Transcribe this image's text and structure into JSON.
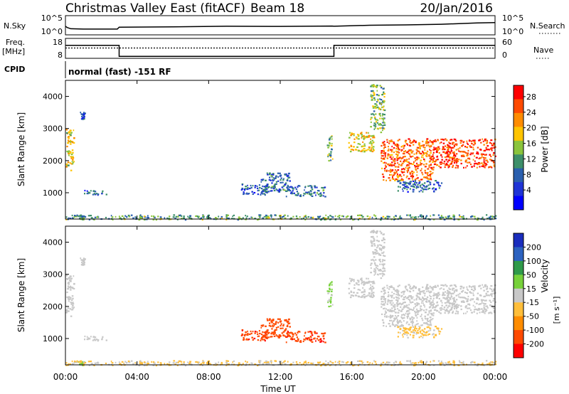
{
  "header": {
    "station": "Christmas Valley East (fitACF)",
    "beam": "Beam 18",
    "date": "20/Jan/2016"
  },
  "panels": {
    "nsky": {
      "left_label": "N.Sky",
      "left_ticks": [
        "10^5",
        "10^0"
      ],
      "right_label": "N.Search",
      "right_ticks": [
        "10^5",
        "10^0"
      ],
      "color": "#000000",
      "nsky_points": [
        [
          0.0,
          0.55
        ],
        [
          0.1,
          0.62
        ],
        [
          0.3,
          0.68
        ],
        [
          1.0,
          0.7
        ],
        [
          2.9,
          0.7
        ],
        [
          3.0,
          0.6
        ],
        [
          6.0,
          0.58
        ],
        [
          9.0,
          0.55
        ],
        [
          12.0,
          0.56
        ],
        [
          14.9,
          0.54
        ],
        [
          15.0,
          0.55
        ],
        [
          17.0,
          0.5
        ],
        [
          19.0,
          0.48
        ],
        [
          21.0,
          0.45
        ],
        [
          23.0,
          0.38
        ],
        [
          24.0,
          0.36
        ]
      ]
    },
    "freq": {
      "left_label_top": "Freq.",
      "left_label_unit": "[MHz]",
      "left_ticks": [
        "18",
        "8"
      ],
      "right_label": "Nave",
      "right_ticks": [
        "60",
        "0"
      ],
      "freq_steps": [
        [
          0.0,
          14.5
        ],
        [
          3.0,
          14.5
        ],
        [
          3.0,
          9.0
        ],
        [
          15.0,
          9.0
        ],
        [
          15.0,
          14.5
        ],
        [
          24.0,
          14.5
        ]
      ],
      "nave_steps": [
        [
          0.0,
          31
        ],
        [
          24.0,
          31
        ]
      ]
    },
    "cpid": {
      "label": "CPID",
      "mode": "normal (fast) -151 RF"
    },
    "power": {
      "ylabel": "Slant Range [km]",
      "colorbar_label": "Power [dB]",
      "colorbar_ticks": [
        "28",
        "24",
        "20",
        "16",
        "12",
        "8",
        "4"
      ],
      "colorbar_colors": [
        "#ff0000",
        "#ff4a00",
        "#ff8c00",
        "#ffc400",
        "#8ac43c",
        "#3d8f6a",
        "#2a5fae",
        "#1f34d6",
        "#0000ff"
      ]
    },
    "velocity": {
      "ylabel": "Velocity",
      "ylabel_unit": "[m s⁻¹]",
      "slant_label": "Slant Range [km]",
      "colorbar_ticks": [
        "200",
        "100",
        "50",
        "15",
        "-15",
        "-50",
        "-100",
        "-200"
      ],
      "colorbar_colors": [
        "#1a2dbd",
        "#2c62c0",
        "#2f9a4a",
        "#77d13a",
        "#c8c8c8",
        "#ffbe3a",
        "#ff8c00",
        "#ff4a00",
        "#ff0000"
      ]
    }
  },
  "axes": {
    "xlabel": "Time UT",
    "x_ticks": [
      "00:00",
      "04:00",
      "08:00",
      "12:00",
      "16:00",
      "20:00",
      "00:00"
    ],
    "y_ticks": [
      "4000",
      "3000",
      "2000",
      "1000"
    ]
  },
  "chart_data": {
    "type": "heatmap",
    "title": "Christmas Valley East (fitACF)",
    "subtitle": "Beam 18",
    "xlabel": "Time UT",
    "ylabel": "Slant Range [km]",
    "xlim_hours": [
      0,
      24
    ],
    "ylim_km": [
      180,
      4500
    ],
    "power_range_db": [
      0,
      30
    ],
    "velocity_range_ms": [
      -250,
      250
    ],
    "scatter_regions": [
      {
        "t0": 0.0,
        "t1": 0.45,
        "r0": 1700,
        "r1": 3000,
        "power": 18,
        "vel": 0
      },
      {
        "t0": 0.8,
        "t1": 1.05,
        "r0": 3300,
        "r1": 3550,
        "power": 8,
        "vel": 0
      },
      {
        "t0": 1.0,
        "t1": 2.3,
        "r0": 950,
        "r1": 1100,
        "power": 8,
        "vel": 0
      },
      {
        "t0": 0.7,
        "t1": 1.0,
        "r0": 180,
        "r1": 300,
        "power": 10,
        "vel": 40
      },
      {
        "t0": 9.8,
        "t1": 11.3,
        "r0": 950,
        "r1": 1300,
        "power": 8,
        "vel": -180
      },
      {
        "t0": 10.9,
        "t1": 12.5,
        "r0": 1050,
        "r1": 1650,
        "power": 9,
        "vel": -170
      },
      {
        "t0": 12.3,
        "t1": 14.5,
        "r0": 900,
        "r1": 1250,
        "power": 9,
        "vel": -180
      },
      {
        "t0": 14.6,
        "t1": 14.9,
        "r0": 2000,
        "r1": 2800,
        "power": 14,
        "vel": 40
      },
      {
        "t0": 15.8,
        "t1": 17.2,
        "r0": 2300,
        "r1": 2900,
        "power": 18,
        "vel": 0
      },
      {
        "t0": 17.0,
        "t1": 17.8,
        "r0": 2900,
        "r1": 4400,
        "power": 14,
        "vel": 0
      },
      {
        "t0": 17.6,
        "t1": 20.5,
        "r0": 1400,
        "r1": 2700,
        "power": 24,
        "vel": 0
      },
      {
        "t0": 20.5,
        "t1": 24.0,
        "r0": 1800,
        "r1": 2700,
        "power": 26,
        "vel": 0
      },
      {
        "t0": 18.5,
        "t1": 21.0,
        "r0": 1050,
        "r1": 1400,
        "power": 8,
        "vel": -40
      },
      {
        "t0": 0.0,
        "t1": 24.0,
        "r0": 180,
        "r1": 330,
        "power": 12,
        "vel": -30
      }
    ]
  }
}
